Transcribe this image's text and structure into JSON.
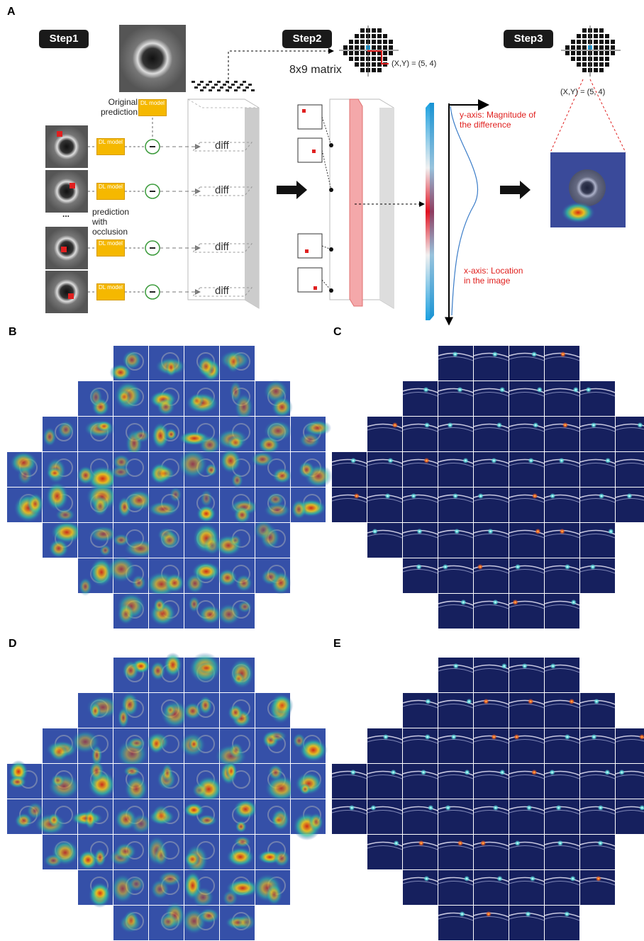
{
  "panel_labels": [
    "A",
    "B",
    "C",
    "D",
    "E"
  ],
  "step1": {
    "label": "Step1",
    "original_prediction": "Original prediction",
    "occlusion_prediction": "prediction with occlusion",
    "ellipsis": "...",
    "model_labels": [
      "DL model",
      "DL model",
      "DL model",
      "DL model",
      "DL model"
    ],
    "diff_labels": [
      "diff",
      "diff",
      "diff",
      "diff"
    ]
  },
  "step2": {
    "label": "Step2",
    "matrix": "8x9 matrix",
    "coordinate": "(X,Y) = (5, 4)",
    "y_axis": "y-axis: Magnitude of the difference",
    "x_axis": "x-axis: Location in the image"
  },
  "step3": {
    "label": "Step3",
    "coordinate": "(X,Y) = (5, 4)"
  }
}
